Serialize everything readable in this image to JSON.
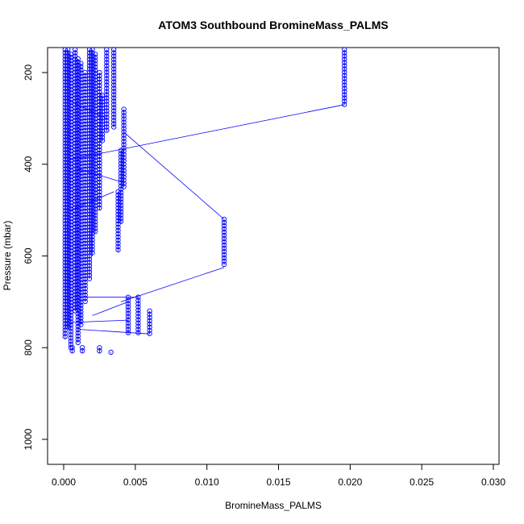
{
  "chart_data": {
    "type": "scatter",
    "title": "ATOM3 Southbound BromineMass_PALMS",
    "xlabel": "BromineMass_PALMS",
    "ylabel": "Pressure (mbar)",
    "xlim": [
      0.0,
      0.03
    ],
    "ylim_reversed": [
      1050,
      150
    ],
    "x_ticks": [
      0.0,
      0.005,
      0.01,
      0.015,
      0.02,
      0.025,
      0.03
    ],
    "x_tick_labels": [
      "0.000",
      "0.005",
      "0.010",
      "0.015",
      "0.020",
      "0.025",
      "0.030"
    ],
    "y_ticks": [
      200,
      400,
      600,
      800,
      1000
    ],
    "y_tick_labels": [
      "200",
      "400",
      "600",
      "800",
      "1000"
    ],
    "grid": false,
    "series": [
      {
        "color": "#0000ff",
        "marker": "open-circle",
        "line": true,
        "clusters": [
          {
            "x": 0.0001,
            "p": [
              150,
              780
            ]
          },
          {
            "x": 0.0003,
            "p": [
              150,
              760
            ]
          },
          {
            "x": 0.0005,
            "p": [
              160,
              800
            ]
          },
          {
            "x": 0.0008,
            "p": [
              150,
              720
            ]
          },
          {
            "x": 0.001,
            "p": [
              170,
              790
            ]
          },
          {
            "x": 0.0012,
            "p": [
              180,
              750
            ]
          },
          {
            "x": 0.0015,
            "p": [
              200,
              700
            ]
          },
          {
            "x": 0.0018,
            "p": [
              150,
              650
            ]
          },
          {
            "x": 0.002,
            "p": [
              150,
              600
            ]
          },
          {
            "x": 0.0022,
            "p": [
              160,
              550
            ]
          },
          {
            "x": 0.0025,
            "p": [
              200,
              500
            ]
          },
          {
            "x": 0.0027,
            "p": [
              250,
              350
            ]
          },
          {
            "x": 0.003,
            "p": [
              150,
              330
            ]
          },
          {
            "x": 0.0035,
            "p": [
              150,
              320
            ]
          },
          {
            "x": 0.0038,
            "p": [
              460,
              590
            ]
          },
          {
            "x": 0.004,
            "p": [
              370,
              530
            ]
          },
          {
            "x": 0.0042,
            "p": [
              280,
              450
            ]
          },
          {
            "x": 0.0045,
            "p": [
              690,
              770
            ]
          },
          {
            "x": 0.0052,
            "p": [
              690,
              770
            ]
          },
          {
            "x": 0.006,
            "p": [
              720,
              770
            ]
          },
          {
            "x": 0.0112,
            "p": [
              520,
              620
            ]
          },
          {
            "x": 0.0196,
            "p": [
              150,
              270
            ]
          },
          {
            "x": 0.0013,
            "p": [
              800,
              812
            ]
          },
          {
            "x": 0.0025,
            "p": [
              800,
              812
            ]
          },
          {
            "x": 0.0033,
            "p": [
              810,
              812
            ]
          },
          {
            "x": 0.0006,
            "p": [
              800,
              812
            ]
          }
        ],
        "connectors": [
          [
            0.0196,
            270,
            0.0004,
            390
          ],
          [
            0.0112,
            520,
            0.0042,
            330
          ],
          [
            0.0112,
            625,
            0.004,
            700
          ],
          [
            0.0042,
            440,
            0.001,
            410
          ],
          [
            0.0045,
            700,
            0.002,
            730
          ],
          [
            0.006,
            770,
            0.001,
            760
          ],
          [
            0.0035,
            460,
            0.0005,
            500
          ],
          [
            0.003,
            300,
            0.0003,
            260
          ],
          [
            0.0052,
            690,
            0.0015,
            690
          ],
          [
            0.0045,
            740,
            0.0005,
            745
          ]
        ]
      }
    ]
  }
}
